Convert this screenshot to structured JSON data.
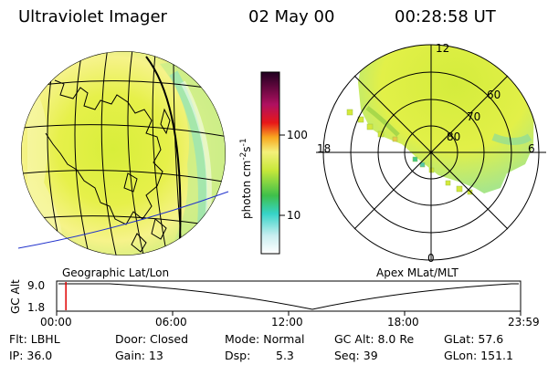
{
  "header": {
    "instrument": "Ultraviolet Imager",
    "date": "02 May 00",
    "time": "00:28:58 UT"
  },
  "panels": {
    "left_label": "Geographic Lat/Lon",
    "right_label": "Apex MLat/MLT"
  },
  "colorbar": {
    "unit": "photon cm",
    "exp1": "-2",
    "mid": "s",
    "exp2": "-1",
    "tick_100": "100",
    "tick_10": "10"
  },
  "polar": {
    "mlt_top": "12",
    "mlt_bottom": "0",
    "mlt_left": "18",
    "mlt_right": "6",
    "lat_60": "60",
    "lat_70": "70",
    "lat_80": "80"
  },
  "timeline": {
    "ylabel": "GC Alt",
    "y_top": "9.0",
    "y_bottom": "1.8",
    "ticks": [
      "00:00",
      "06:00",
      "12:00",
      "18:00",
      "23:59"
    ],
    "marker_time_fraction": 0.02,
    "marker_color": "#e00000"
  },
  "info": {
    "flt": "Flt: LBHL",
    "ip": "IP: 36.0",
    "door": "Door: Closed",
    "gain": "Gain: 13",
    "mode": "Mode: Normal",
    "dsp_label": "Dsp:",
    "dsp_value": "5.3",
    "gc_alt": "GC Alt: 8.0 Re",
    "seq": "Seq: 39",
    "glat": "GLat:  57.6",
    "glon": "GLon: 151.1"
  }
}
